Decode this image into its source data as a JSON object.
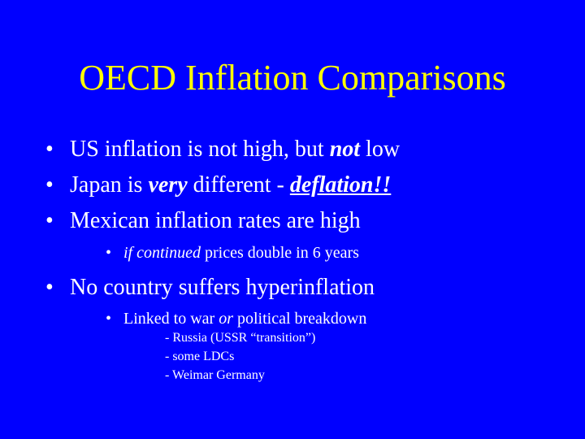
{
  "title": "OECD Inflation Comparisons",
  "bullet_char": "•",
  "bullets": [
    {
      "pre": "US inflation is not high, but ",
      "emph": "not",
      "post": " low"
    },
    {
      "pre": "Japan is ",
      "emph": "very",
      "mid": " different - ",
      "emph2": "deflation!!"
    },
    {
      "text": "Mexican inflation rates are high"
    }
  ],
  "sub_bullet_1": {
    "emph": "if continued",
    "post": " prices double in 6 years"
  },
  "bullet_4": {
    "text": "No country suffers hyperinflation"
  },
  "sub_bullet_2": {
    "pre": "Linked to war ",
    "emph": "or",
    "post": " political breakdown"
  },
  "dash_items": [
    "- Russia (USSR “transition”)",
    "- some LDCs",
    "- Weimar Germany"
  ],
  "colors": {
    "background": "#0000ff",
    "title": "#ffff00",
    "text": "#ffffff"
  }
}
